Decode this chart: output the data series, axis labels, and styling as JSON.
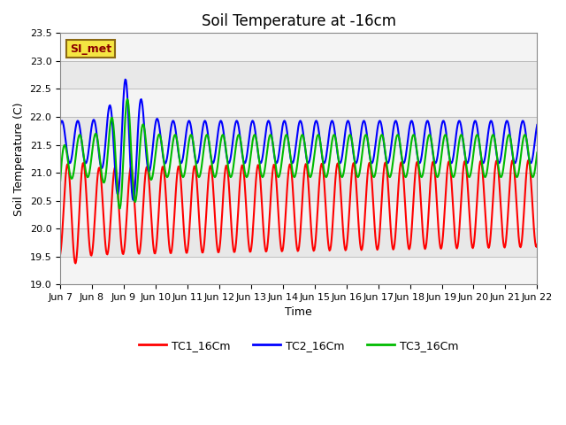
{
  "title": "Soil Temperature at -16cm",
  "xlabel": "Time",
  "ylabel": "Soil Temperature (C)",
  "ylim": [
    19.0,
    23.5
  ],
  "yticks": [
    19.0,
    19.5,
    20.0,
    20.5,
    21.0,
    21.5,
    22.0,
    22.5,
    23.0,
    23.5
  ],
  "background_color": "#ffffff",
  "plot_bg_color": "#e8e8e8",
  "annotation_text": "SI_met",
  "annotation_bg": "#f5e642",
  "annotation_border": "#8b6914",
  "legend_labels": [
    "TC1_16Cm",
    "TC2_16Cm",
    "TC3_16Cm"
  ],
  "line_colors": [
    "#ff0000",
    "#0000ff",
    "#00bb00"
  ],
  "line_width": 1.5,
  "date_labels": [
    "Jun 7",
    "Jun 8",
    "Jun 9",
    "Jun 10",
    "Jun 11",
    "Jun 12",
    "Jun 13",
    "Jun 14",
    "Jun 15",
    "Jun 16",
    "Jun 17",
    "Jun 18",
    "Jun 19",
    "Jun 20",
    "Jun 21",
    "Jun 22"
  ],
  "title_fontsize": 12,
  "axis_label_fontsize": 9,
  "tick_fontsize": 8,
  "legend_fontsize": 9,
  "figsize": [
    6.4,
    4.8
  ],
  "dpi": 100
}
